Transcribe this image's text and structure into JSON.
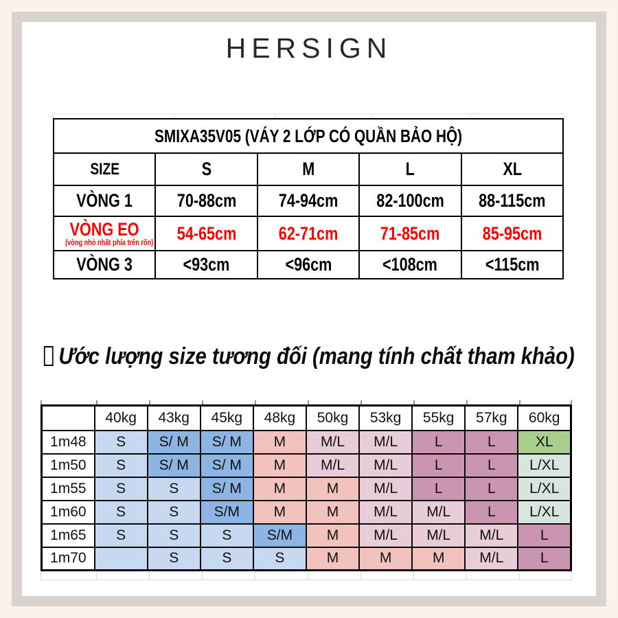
{
  "brand": {
    "logo": "HERSIGN"
  },
  "palette": {
    "page_background": "#fdf2e9",
    "frame_border": "#d9d3d0",
    "accent_red": "#ff0000"
  },
  "size_table": {
    "title": "SMIXA35V05 (VÁY 2 LỚP CÓ QUẦN BẢO HỘ)",
    "header": [
      "SIZE",
      "S",
      "M",
      "L",
      "XL"
    ],
    "rows": [
      {
        "label": "VÒNG 1",
        "sublabel": "",
        "accent": "black",
        "values": [
          "70-88cm",
          "74-94cm",
          "82-100cm",
          "88-115cm"
        ]
      },
      {
        "label": "VÒNG EO",
        "sublabel": "(vòng nhỏ nhất phía trên rốn)",
        "accent": "red",
        "values": [
          "54-65cm",
          "62-71cm",
          "71-85cm",
          "85-95cm"
        ]
      },
      {
        "label": "VÒNG 3",
        "sublabel": "",
        "accent": "black",
        "values": [
          "<93cm",
          "<96cm",
          "<108cm",
          "<115cm"
        ]
      }
    ]
  },
  "estimate": {
    "heading": "Ước lượng size tương đối (mang tính chất tham khảo)",
    "leading_icon": "missing-glyph-box",
    "weight_headers": [
      "40kg",
      "43kg",
      "45kg",
      "48kg",
      "50kg",
      "53kg",
      "55kg",
      "57kg",
      "60kg"
    ],
    "colors": {
      "lightBlue": "#c6d9f1",
      "medBlue": "#8db4e2",
      "salmon": "#f2c3bd",
      "lightPink": "#e8ccd8",
      "mauve": "#c995b0",
      "green": "#a8cf8e",
      "paleGreen": "#d8e5df"
    },
    "rows": [
      {
        "height": "1m48",
        "cells": [
          {
            "t": "S",
            "c": "lightBlue"
          },
          {
            "t": "S/ M",
            "c": "medBlue"
          },
          {
            "t": "S/ M",
            "c": "medBlue"
          },
          {
            "t": "M",
            "c": "salmon"
          },
          {
            "t": "M/L",
            "c": "lightPink"
          },
          {
            "t": "M/L",
            "c": "lightPink"
          },
          {
            "t": "L",
            "c": "mauve"
          },
          {
            "t": "L",
            "c": "mauve"
          },
          {
            "t": "XL",
            "c": "green"
          }
        ]
      },
      {
        "height": "1m50",
        "cells": [
          {
            "t": "S",
            "c": "lightBlue"
          },
          {
            "t": "S/ M",
            "c": "medBlue"
          },
          {
            "t": "S/ M",
            "c": "medBlue"
          },
          {
            "t": "M",
            "c": "salmon"
          },
          {
            "t": "M/L",
            "c": "lightPink"
          },
          {
            "t": "M/L",
            "c": "lightPink"
          },
          {
            "t": "L",
            "c": "mauve"
          },
          {
            "t": "L",
            "c": "mauve"
          },
          {
            "t": "L/XL",
            "c": "paleGreen"
          }
        ]
      },
      {
        "height": "1m55",
        "cells": [
          {
            "t": "S",
            "c": "lightBlue"
          },
          {
            "t": "S",
            "c": "lightBlue"
          },
          {
            "t": "S/ M",
            "c": "medBlue"
          },
          {
            "t": "M",
            "c": "salmon"
          },
          {
            "t": "M",
            "c": "salmon"
          },
          {
            "t": "M/L",
            "c": "lightPink"
          },
          {
            "t": "L",
            "c": "mauve"
          },
          {
            "t": "L",
            "c": "mauve"
          },
          {
            "t": "L/XL",
            "c": "paleGreen"
          }
        ]
      },
      {
        "height": "1m60",
        "cells": [
          {
            "t": "S",
            "c": "lightBlue"
          },
          {
            "t": "S",
            "c": "lightBlue"
          },
          {
            "t": "S/M",
            "c": "medBlue"
          },
          {
            "t": "M",
            "c": "salmon"
          },
          {
            "t": "M",
            "c": "salmon"
          },
          {
            "t": "M/L",
            "c": "lightPink"
          },
          {
            "t": "M/L",
            "c": "lightPink"
          },
          {
            "t": "L",
            "c": "mauve"
          },
          {
            "t": "L/XL",
            "c": "paleGreen"
          }
        ]
      },
      {
        "height": "1m65",
        "cells": [
          {
            "t": "S",
            "c": "lightBlue"
          },
          {
            "t": "S",
            "c": "lightBlue"
          },
          {
            "t": "S",
            "c": "lightBlue"
          },
          {
            "t": "S/M",
            "c": "medBlue"
          },
          {
            "t": "M",
            "c": "salmon"
          },
          {
            "t": "M/L",
            "c": "lightPink"
          },
          {
            "t": "M/L",
            "c": "lightPink"
          },
          {
            "t": "M/L",
            "c": "lightPink"
          },
          {
            "t": "L",
            "c": "mauve"
          }
        ]
      },
      {
        "height": "1m70",
        "cells": [
          {
            "t": "",
            "c": "lightBlue"
          },
          {
            "t": "S",
            "c": "lightBlue"
          },
          {
            "t": "S",
            "c": "lightBlue"
          },
          {
            "t": "S",
            "c": "lightBlue"
          },
          {
            "t": "M",
            "c": "salmon"
          },
          {
            "t": "M",
            "c": "salmon"
          },
          {
            "t": "M",
            "c": "salmon"
          },
          {
            "t": "M/L",
            "c": "lightPink"
          },
          {
            "t": "L",
            "c": "mauve"
          }
        ]
      }
    ]
  }
}
